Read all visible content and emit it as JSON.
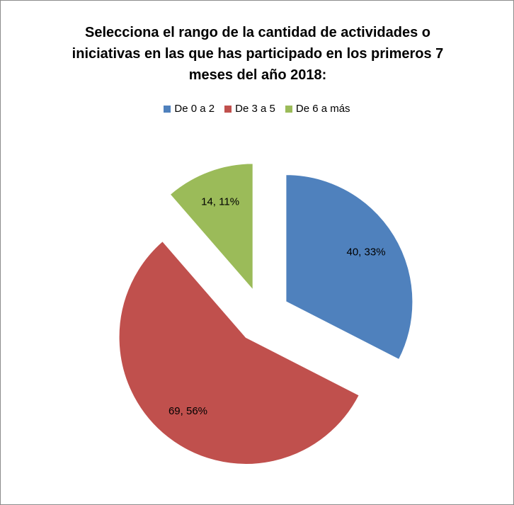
{
  "chart_data": {
    "type": "pie",
    "title": "Selecciona el rango de la cantidad de actividades o iniciativas en las que has participado en los primeros 7 meses del año 2018:",
    "categories": [
      "De 0 a 2",
      "De 3 a 5",
      "De 6 a más"
    ],
    "values": [
      40,
      69,
      14
    ],
    "value_labels": [
      "40, 33%",
      "69, 56%",
      "14, 11%"
    ],
    "colors": [
      "#4f81bd",
      "#c0504d",
      "#9bbb59"
    ],
    "legend": "top"
  }
}
